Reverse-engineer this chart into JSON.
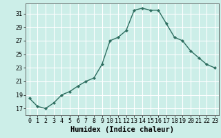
{
  "x": [
    0,
    1,
    2,
    3,
    4,
    5,
    6,
    7,
    8,
    9,
    10,
    11,
    12,
    13,
    14,
    15,
    16,
    17,
    18,
    19,
    20,
    21,
    22,
    23
  ],
  "y": [
    18.5,
    17.3,
    17.0,
    17.8,
    19.0,
    19.5,
    20.3,
    21.0,
    21.5,
    23.5,
    27.0,
    27.5,
    28.5,
    31.5,
    31.8,
    31.5,
    31.5,
    29.5,
    27.5,
    27.0,
    25.5,
    24.5,
    23.5,
    23.0
  ],
  "line_color": "#2e6e60",
  "marker": "D",
  "marker_size": 2.2,
  "bg_color": "#cceee8",
  "grid_color": "#ffffff",
  "xlabel": "Humidex (Indice chaleur)",
  "xlim": [
    -0.5,
    23.5
  ],
  "ylim": [
    16.0,
    32.5
  ],
  "yticks": [
    17,
    19,
    21,
    23,
    25,
    27,
    29,
    31
  ],
  "xticks": [
    0,
    1,
    2,
    3,
    4,
    5,
    6,
    7,
    8,
    9,
    10,
    11,
    12,
    13,
    14,
    15,
    16,
    17,
    18,
    19,
    20,
    21,
    22,
    23
  ],
  "tick_fontsize": 6.0,
  "xlabel_fontsize": 7.5,
  "linewidth": 1.0
}
